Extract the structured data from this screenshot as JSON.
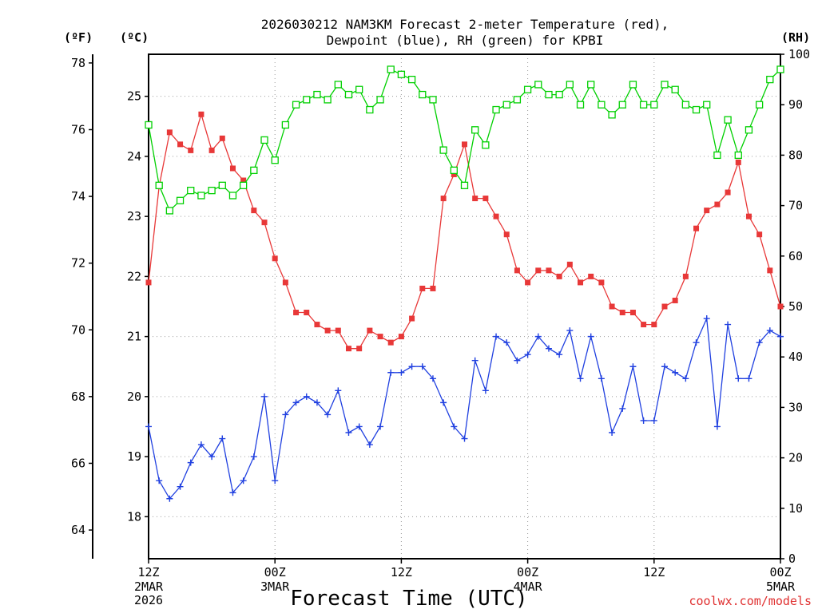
{
  "chart_data": {
    "type": "line",
    "title": "2026030212 NAM3KM Forecast 2-meter Temperature (red),",
    "title_line2": "Dewpoint (blue), RH (green) for KPBI",
    "xlabel": "Forecast Time (UTC)",
    "credit": "coolwx.com/models",
    "units": {
      "fahrenheit": "(ºF)",
      "celsius": "(ºC)",
      "rh": "(RH)"
    },
    "x_ticks": [
      {
        "hour": 0,
        "time": "12Z",
        "date": "2MAR",
        "year": "2026"
      },
      {
        "hour": 12,
        "time": "00Z",
        "date": "3MAR",
        "year": ""
      },
      {
        "hour": 24,
        "time": "12Z",
        "date": "",
        "year": ""
      },
      {
        "hour": 36,
        "time": "00Z",
        "date": "4MAR",
        "year": ""
      },
      {
        "hour": 48,
        "time": "12Z",
        "date": "",
        "year": ""
      },
      {
        "hour": 60,
        "time": "00Z",
        "date": "5MAR",
        "year": ""
      }
    ],
    "x_range_hours": [
      0,
      60
    ],
    "celsius_range": [
      17.3,
      25.7
    ],
    "celsius_ticks": [
      "18",
      "19",
      "20",
      "21",
      "22",
      "23",
      "24",
      "25"
    ],
    "fahrenheit_ticks": [
      "64",
      "66",
      "68",
      "70",
      "72",
      "74",
      "76",
      "78"
    ],
    "rh_range": [
      0,
      100
    ],
    "rh_ticks": [
      "0",
      "10",
      "20",
      "30",
      "40",
      "50",
      "60",
      "70",
      "80",
      "90",
      "100"
    ],
    "colors": {
      "temperature": "#e83838",
      "dewpoint": "#2040e0",
      "rh": "#00d000",
      "axis": "#000000"
    },
    "series": [
      {
        "name": "Temperature (°C)",
        "axis": "celsius",
        "marker": "filled-square",
        "values": [
          21.9,
          23.5,
          24.4,
          24.2,
          24.1,
          24.7,
          24.1,
          24.3,
          23.8,
          23.6,
          23.1,
          22.9,
          22.3,
          21.9,
          21.4,
          21.4,
          21.2,
          21.1,
          21.1,
          20.8,
          20.8,
          21.1,
          21.0,
          20.9,
          21.0,
          21.3,
          21.8,
          21.8,
          23.3,
          23.7,
          24.2,
          23.3,
          23.3,
          23.0,
          22.7,
          22.1,
          21.9,
          22.1,
          22.1,
          22.0,
          22.2,
          21.9,
          22.0,
          21.9,
          21.5,
          21.4,
          21.4,
          21.2,
          21.2,
          21.5,
          21.6,
          22.0,
          22.8,
          23.1,
          23.2,
          23.4,
          23.9,
          23.0,
          22.7,
          22.1,
          21.5
        ]
      },
      {
        "name": "Dewpoint (°C)",
        "axis": "celsius",
        "marker": "plus",
        "values": [
          19.5,
          18.6,
          18.3,
          18.5,
          18.9,
          19.2,
          19.0,
          19.3,
          18.4,
          18.6,
          19.0,
          20.0,
          18.6,
          19.7,
          19.9,
          20.0,
          19.9,
          19.7,
          20.1,
          19.4,
          19.5,
          19.2,
          19.5,
          20.4,
          20.4,
          20.5,
          20.5,
          20.3,
          19.9,
          19.5,
          19.3,
          20.6,
          20.1,
          21.0,
          20.9,
          20.6,
          20.7,
          21.0,
          20.8,
          20.7,
          21.1,
          20.3,
          21.0,
          20.3,
          19.4,
          19.8,
          20.5,
          19.6,
          19.6,
          20.5,
          20.4,
          20.3,
          20.9,
          21.3,
          19.5,
          21.2,
          20.3,
          20.3,
          20.9,
          21.1,
          21.0
        ]
      },
      {
        "name": "Relative Humidity (%)",
        "axis": "rh",
        "marker": "open-square",
        "values": [
          86,
          74,
          69,
          71,
          73,
          72,
          73,
          74,
          72,
          74,
          77,
          83,
          79,
          86,
          90,
          91,
          92,
          91,
          94,
          92,
          93,
          89,
          91,
          97,
          96,
          95,
          92,
          91,
          81,
          77,
          74,
          85,
          82,
          89,
          90,
          91,
          93,
          94,
          92,
          92,
          94,
          90,
          94,
          90,
          88,
          90,
          94,
          90,
          90,
          94,
          93,
          90,
          89,
          90,
          80,
          87,
          80,
          85,
          90,
          95,
          97
        ]
      }
    ]
  }
}
